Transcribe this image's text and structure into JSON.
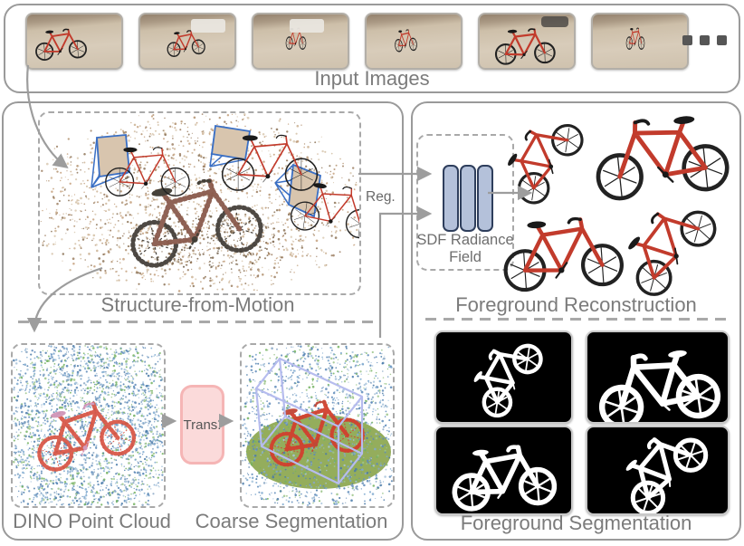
{
  "figure": {
    "input_panel": {
      "label": "Input Images",
      "ellipsis": "...",
      "image_count": 6,
      "images": [
        "bike-photo-1",
        "bike-photo-2",
        "bike-photo-3",
        "bike-photo-4",
        "bike-photo-5",
        "bike-photo-6"
      ]
    },
    "left_panel": {
      "sfm_label": "Structure-from-Motion",
      "dino_label": "DINO Point Cloud",
      "trans_label": "Trans.",
      "coarse_label": "Coarse Segmentation"
    },
    "right_panel": {
      "reg_label": "Reg.",
      "sdf_label_line1": "SDF Radiance",
      "sdf_label_line2": "Field",
      "recon_label": "Foreground Reconstruction",
      "seg_label": "Foreground Segmentation",
      "recon_view_count": 4,
      "mask_count": 4
    },
    "colors": {
      "panel_border": "#9a9a9a",
      "dashed_border": "#a9a9a9",
      "label_gray": "#7b7b7b",
      "arrow_gray": "#9d9d9d",
      "frustum_blue": "#3a6fc4",
      "trans_fill": "#fbdada",
      "trans_border": "#f5b5b5",
      "mlp_bar_fill": "#b4c1da",
      "mlp_bar_border": "#2e3e5c",
      "bike_red": "#c23b2c",
      "ground_ellipse_green": "#8ea953",
      "bbox_purple": "#b6bcee",
      "mask_bg": "#000000",
      "mask_fg": "#ffffff"
    }
  }
}
